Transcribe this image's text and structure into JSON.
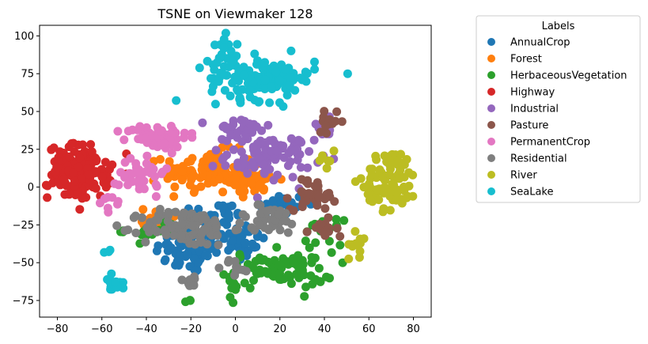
{
  "chart_data": {
    "type": "scatter",
    "title": "TSNE on Viewmaker 128",
    "xlabel": "",
    "ylabel": "",
    "xlim": [
      -88,
      88
    ],
    "ylim": [
      -86,
      107
    ],
    "x_ticks": [
      -80,
      -60,
      -40,
      -20,
      0,
      20,
      40,
      60,
      80
    ],
    "y_ticks": [
      -75,
      -50,
      -25,
      0,
      25,
      50,
      75,
      100
    ],
    "grid": false,
    "legend": {
      "title": "Labels",
      "position": "outside-right"
    },
    "series": [
      {
        "name": "AnnualCrop",
        "color": "#1f77b4",
        "clusters": [
          {
            "center": [
              -20,
              -42
            ],
            "spread": [
              8,
              8
            ],
            "n": 70
          },
          {
            "center": [
              0,
              -35
            ],
            "spread": [
              7,
              6
            ],
            "n": 40
          },
          {
            "center": [
              20,
              -12
            ],
            "spread": [
              6,
              4
            ],
            "n": 30
          },
          {
            "center": [
              -10,
              -18
            ],
            "spread": [
              8,
              4
            ],
            "n": 30
          }
        ]
      },
      {
        "name": "Forest",
        "color": "#ff7f0e",
        "clusters": [
          {
            "center": [
              -12,
              10
            ],
            "spread": [
              10,
              7
            ],
            "n": 110
          },
          {
            "center": [
              8,
              5
            ],
            "spread": [
              6,
              5
            ],
            "n": 40
          },
          {
            "center": [
              -38,
              -22
            ],
            "spread": [
              4,
              4
            ],
            "n": 12
          }
        ]
      },
      {
        "name": "HerbaceousVegetation",
        "color": "#2ca02c",
        "clusters": [
          {
            "center": [
              20,
              -55
            ],
            "spread": [
              12,
              6
            ],
            "n": 75
          },
          {
            "center": [
              -38,
              -28
            ],
            "spread": [
              6,
              4
            ],
            "n": 22
          },
          {
            "center": [
              38,
              -30
            ],
            "spread": [
              5,
              4
            ],
            "n": 15
          },
          {
            "center": [
              -22,
              -76
            ],
            "spread": [
              1,
              1
            ],
            "n": 3
          },
          {
            "center": [
              0,
              -70
            ],
            "spread": [
              1,
              4
            ],
            "n": 6
          }
        ]
      },
      {
        "name": "Highway",
        "color": "#d62728",
        "clusters": [
          {
            "center": [
              -70,
              10
            ],
            "spread": [
              7,
              9
            ],
            "n": 150
          }
        ]
      },
      {
        "name": "Industrial",
        "color": "#9467bd",
        "clusters": [
          {
            "center": [
              15,
              20
            ],
            "spread": [
              10,
              7
            ],
            "n": 90
          },
          {
            "center": [
              2,
              38
            ],
            "spread": [
              7,
              4
            ],
            "n": 30
          },
          {
            "center": [
              40,
              40
            ],
            "spread": [
              3,
              3
            ],
            "n": 8
          }
        ]
      },
      {
        "name": "Pasture",
        "color": "#8c564b",
        "clusters": [
          {
            "center": [
              35,
              -5
            ],
            "spread": [
              5,
              5
            ],
            "n": 40
          },
          {
            "center": [
              43,
              43
            ],
            "spread": [
              3,
              3
            ],
            "n": 15
          },
          {
            "center": [
              38,
              -30
            ],
            "spread": [
              4,
              4
            ],
            "n": 15
          }
        ]
      },
      {
        "name": "PermanentCrop",
        "color": "#e377c2",
        "clusters": [
          {
            "center": [
              -35,
              33
            ],
            "spread": [
              7,
              4
            ],
            "n": 70
          },
          {
            "center": [
              -42,
              10
            ],
            "spread": [
              5,
              8
            ],
            "n": 40
          },
          {
            "center": [
              -55,
              -10
            ],
            "spread": [
              3,
              3
            ],
            "n": 8
          }
        ]
      },
      {
        "name": "Residential",
        "color": "#7f7f7f",
        "clusters": [
          {
            "center": [
              -22,
              -27
            ],
            "spread": [
              10,
              6
            ],
            "n": 100
          },
          {
            "center": [
              15,
              -22
            ],
            "spread": [
              8,
              5
            ],
            "n": 40
          },
          {
            "center": [
              -20,
              -62
            ],
            "spread": [
              3,
              2
            ],
            "n": 10
          },
          {
            "center": [
              0,
              -53
            ],
            "spread": [
              3,
              3
            ],
            "n": 10
          }
        ]
      },
      {
        "name": "River",
        "color": "#bcbd22",
        "clusters": [
          {
            "center": [
              70,
              5
            ],
            "spread": [
              6,
              10
            ],
            "n": 90
          },
          {
            "center": [
              55,
              -38
            ],
            "spread": [
              2,
              4
            ],
            "n": 12
          },
          {
            "center": [
              40,
              18
            ],
            "spread": [
              3,
              3
            ],
            "n": 6
          }
        ]
      },
      {
        "name": "SeaLake",
        "color": "#17becf",
        "clusters": [
          {
            "center": [
              12,
              72
            ],
            "spread": [
              12,
              7
            ],
            "n": 130
          },
          {
            "center": [
              -5,
              85
            ],
            "spread": [
              3,
              7
            ],
            "n": 20
          },
          {
            "center": [
              -55,
              -63
            ],
            "spread": [
              2,
              3
            ],
            "n": 18
          },
          {
            "center": [
              -57,
              -42
            ],
            "spread": [
              1,
              1
            ],
            "n": 3
          }
        ]
      }
    ]
  }
}
